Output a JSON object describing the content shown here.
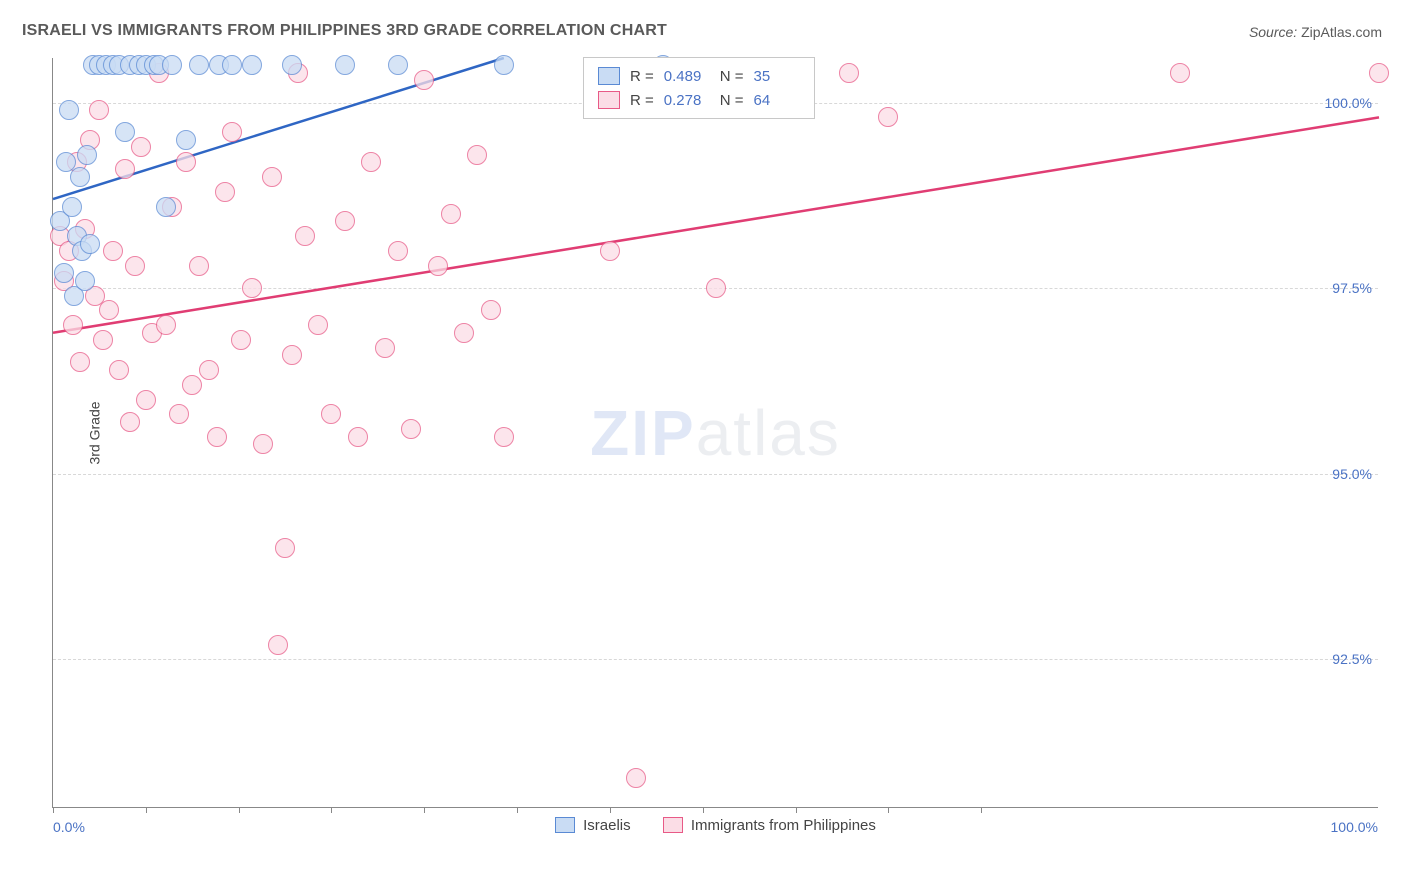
{
  "title": "ISRAELI VS IMMIGRANTS FROM PHILIPPINES 3RD GRADE CORRELATION CHART",
  "source_label": "Source:",
  "source_name": "ZipAtlas.com",
  "watermark_zip": "ZIP",
  "watermark_atlas": "atlas",
  "chart": {
    "type": "scatter",
    "ylabel": "3rd Grade",
    "background_color": "#ffffff",
    "grid_color": "#d8d8d8",
    "axis_color": "#888888",
    "tick_label_color": "#4a72c4",
    "label_fontsize": 14,
    "title_fontsize": 16,
    "title_color": "#5a5a5a",
    "marker_radius": 10,
    "xlim": [
      0,
      100
    ],
    "ylim": [
      90.5,
      100.6
    ],
    "xlabel_min": "0.0%",
    "xlabel_max": "100.0%",
    "xtick_positions": [
      0,
      7,
      14,
      21,
      28,
      35,
      42,
      49,
      56,
      63,
      70
    ],
    "yticks": [
      {
        "v": 100.0,
        "label": "100.0%"
      },
      {
        "v": 97.5,
        "label": "97.5%"
      },
      {
        "v": 95.0,
        "label": "95.0%"
      },
      {
        "v": 92.5,
        "label": "92.5%"
      }
    ],
    "series": [
      {
        "name": "Israelis",
        "fill": "#c9dcf4",
        "stroke": "#5a8ad4",
        "line_color": "#2f66c4",
        "line_width": 2.5,
        "trend": {
          "x1": 0,
          "y1": 98.7,
          "x2": 34,
          "y2": 100.6
        },
        "R": 0.489,
        "N": 35,
        "points": [
          [
            0.5,
            98.4
          ],
          [
            0.8,
            97.7
          ],
          [
            1.0,
            99.2
          ],
          [
            1.2,
            99.9
          ],
          [
            1.4,
            98.6
          ],
          [
            1.6,
            97.4
          ],
          [
            1.8,
            98.2
          ],
          [
            2.0,
            99.0
          ],
          [
            2.2,
            98.0
          ],
          [
            2.4,
            97.6
          ],
          [
            2.6,
            99.3
          ],
          [
            2.8,
            98.1
          ],
          [
            3.0,
            100.5
          ],
          [
            3.5,
            100.5
          ],
          [
            4.0,
            100.5
          ],
          [
            4.5,
            100.5
          ],
          [
            5.0,
            100.5
          ],
          [
            5.4,
            99.6
          ],
          [
            5.8,
            100.5
          ],
          [
            6.5,
            100.5
          ],
          [
            7.0,
            100.5
          ],
          [
            7.6,
            100.5
          ],
          [
            8.0,
            100.5
          ],
          [
            8.5,
            98.6
          ],
          [
            9.0,
            100.5
          ],
          [
            10.0,
            99.5
          ],
          [
            11.0,
            100.5
          ],
          [
            12.5,
            100.5
          ],
          [
            13.5,
            100.5
          ],
          [
            15.0,
            100.5
          ],
          [
            18.0,
            100.5
          ],
          [
            22.0,
            100.5
          ],
          [
            26.0,
            100.5
          ],
          [
            34.0,
            100.5
          ],
          [
            46.0,
            100.5
          ]
        ]
      },
      {
        "name": "Immigants",
        "label": "Immigrants from Philippines",
        "fill": "#fbdde6",
        "stroke": "#e85a87",
        "line_color": "#e03d73",
        "line_width": 2.5,
        "trend": {
          "x1": 0,
          "y1": 96.9,
          "x2": 100,
          "y2": 99.8
        },
        "R": 0.278,
        "N": 64,
        "points": [
          [
            0.5,
            98.2
          ],
          [
            0.8,
            97.6
          ],
          [
            1.2,
            98.0
          ],
          [
            1.5,
            97.0
          ],
          [
            1.8,
            99.2
          ],
          [
            2.0,
            96.5
          ],
          [
            2.4,
            98.3
          ],
          [
            2.8,
            99.5
          ],
          [
            3.2,
            97.4
          ],
          [
            3.5,
            99.9
          ],
          [
            3.8,
            96.8
          ],
          [
            4.2,
            97.2
          ],
          [
            4.5,
            98.0
          ],
          [
            5.0,
            96.4
          ],
          [
            5.4,
            99.1
          ],
          [
            5.8,
            95.7
          ],
          [
            6.2,
            97.8
          ],
          [
            6.6,
            99.4
          ],
          [
            7.0,
            96.0
          ],
          [
            7.5,
            96.9
          ],
          [
            8.0,
            100.4
          ],
          [
            8.5,
            97.0
          ],
          [
            9.0,
            98.6
          ],
          [
            9.5,
            95.8
          ],
          [
            10.0,
            99.2
          ],
          [
            10.5,
            96.2
          ],
          [
            11.0,
            97.8
          ],
          [
            11.8,
            96.4
          ],
          [
            12.4,
            95.5
          ],
          [
            13.0,
            98.8
          ],
          [
            13.5,
            99.6
          ],
          [
            14.2,
            96.8
          ],
          [
            15.0,
            97.5
          ],
          [
            15.8,
            95.4
          ],
          [
            16.5,
            99.0
          ],
          [
            17.0,
            92.7
          ],
          [
            17.5,
            94.0
          ],
          [
            18.0,
            96.6
          ],
          [
            18.5,
            100.4
          ],
          [
            19.0,
            98.2
          ],
          [
            20.0,
            97.0
          ],
          [
            21.0,
            95.8
          ],
          [
            22.0,
            98.4
          ],
          [
            23.0,
            95.5
          ],
          [
            24.0,
            99.2
          ],
          [
            25.0,
            96.7
          ],
          [
            26.0,
            98.0
          ],
          [
            27.0,
            95.6
          ],
          [
            28.0,
            100.3
          ],
          [
            29.0,
            97.8
          ],
          [
            30.0,
            98.5
          ],
          [
            31.0,
            96.9
          ],
          [
            32.0,
            99.3
          ],
          [
            33.0,
            97.2
          ],
          [
            34.0,
            95.5
          ],
          [
            42.0,
            98.0
          ],
          [
            44.0,
            90.9
          ],
          [
            48.0,
            100.4
          ],
          [
            50.0,
            97.5
          ],
          [
            56.0,
            100.4
          ],
          [
            60.0,
            100.4
          ],
          [
            63.0,
            99.8
          ],
          [
            85.0,
            100.4
          ],
          [
            100.0,
            100.4
          ]
        ]
      }
    ],
    "bottom_legend": [
      {
        "label": "Israelis",
        "fill": "#c9dcf4",
        "stroke": "#5a8ad4"
      },
      {
        "label": "Immigrants from Philippines",
        "fill": "#fbdde6",
        "stroke": "#e85a87"
      }
    ]
  }
}
